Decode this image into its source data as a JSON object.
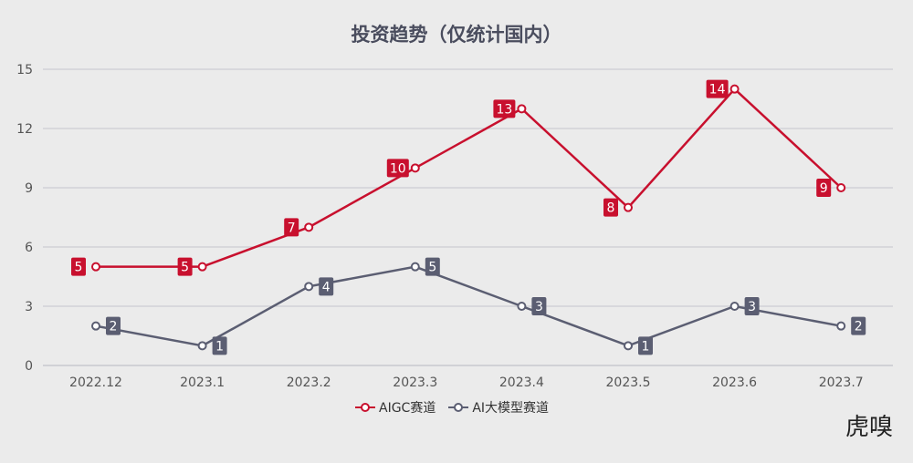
{
  "chart_data": {
    "type": "line",
    "title": "投资趋势（仅统计国内）",
    "categories": [
      "2022.12",
      "2023.1",
      "2023.2",
      "2023.3",
      "2023.4",
      "2023.5",
      "2023.6",
      "2023.7"
    ],
    "series": [
      {
        "name": "AIGC赛道",
        "color": "#c8102e",
        "values": [
          5,
          5,
          7,
          10,
          13,
          8,
          14,
          9
        ]
      },
      {
        "name": "AI大模型赛道",
        "color": "#5b5e72",
        "values": [
          2,
          1,
          4,
          5,
          3,
          1,
          3,
          2
        ]
      }
    ],
    "ylim": [
      0,
      15
    ],
    "yticks": [
      0,
      3,
      6,
      9,
      12,
      15
    ],
    "grid": true,
    "legend": "bottom",
    "data_labels": true
  },
  "logo": "虎嗅"
}
